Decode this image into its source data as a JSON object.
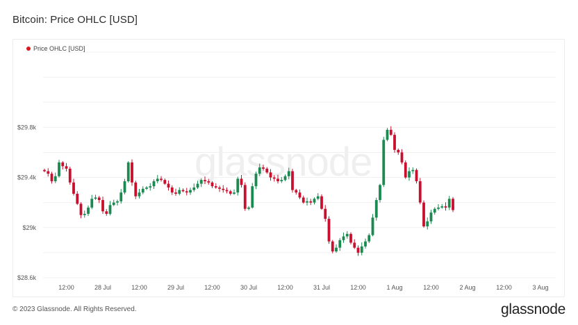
{
  "page": {
    "title": "Bitcoin: Price OHLC [USD]",
    "copyright": "© 2023 Glassnode. All Rights Reserved.",
    "brand": "glassnode",
    "watermark": "glassnode"
  },
  "colors": {
    "up": "#1a8a50",
    "down": "#c8102e",
    "legend": "#d7191c",
    "grid": "#f0f0f0"
  },
  "chart_data": {
    "type": "candlestick",
    "title": "Bitcoin: Price OHLC [USD]",
    "legend": [
      {
        "name": "Price OHLC [USD]"
      }
    ],
    "legend_position": "top-left",
    "grid": true,
    "ylim": [
      28600,
      30400
    ],
    "yticks": [
      {
        "value": 28600,
        "label": "$28.6k"
      },
      {
        "value": 29000,
        "label": "$29k"
      },
      {
        "value": 29400,
        "label": "$29.4k"
      },
      {
        "value": 29800,
        "label": "$29.8k"
      }
    ],
    "xticks": [
      {
        "index": 6,
        "label": "12:00"
      },
      {
        "index": 16,
        "label": "28 Jul"
      },
      {
        "index": 26,
        "label": "12:00"
      },
      {
        "index": 36,
        "label": "29 Jul"
      },
      {
        "index": 46,
        "label": "12:00"
      },
      {
        "index": 56,
        "label": "30 Jul"
      },
      {
        "index": 66,
        "label": "12:00"
      },
      {
        "index": 76,
        "label": "31 Jul"
      },
      {
        "index": 86,
        "label": "12:00"
      },
      {
        "index": 96,
        "label": "1 Aug"
      },
      {
        "index": 106,
        "label": "12:00"
      },
      {
        "index": 116,
        "label": "2 Aug"
      },
      {
        "index": 126,
        "label": "12:00"
      },
      {
        "index": 136,
        "label": "3 Aug"
      }
    ],
    "closes": [
      29450,
      29430,
      29370,
      29410,
      29520,
      29490,
      29470,
      29360,
      29270,
      29190,
      29100,
      29110,
      29160,
      29230,
      29240,
      29220,
      29130,
      29110,
      29180,
      29200,
      29210,
      29280,
      29370,
      29520,
      29360,
      29250,
      29280,
      29310,
      29320,
      29330,
      29370,
      29390,
      29380,
      29350,
      29320,
      29280,
      29270,
      29300,
      29290,
      29280,
      29300,
      29320,
      29350,
      29380,
      29370,
      29360,
      29330,
      29320,
      29310,
      29300,
      29290,
      29270,
      29280,
      29390,
      29340,
      29150,
      29160,
      29330,
      29430,
      29480,
      29470,
      29440,
      29400,
      29390,
      29370,
      29380,
      29410,
      29450,
      29300,
      29280,
      29240,
      29200,
      29210,
      29200,
      29230,
      29250,
      29150,
      29070,
      28890,
      28810,
      28840,
      28900,
      28930,
      28950,
      28880,
      28840,
      28800,
      28850,
      28890,
      28940,
      29080,
      29220,
      29340,
      29700,
      29780,
      29740,
      29620,
      29600,
      29520,
      29400,
      29450,
      29460,
      29370,
      29200,
      29010,
      29050,
      29120,
      29150,
      29160,
      29170,
      29160,
      29230,
      29140
    ]
  }
}
